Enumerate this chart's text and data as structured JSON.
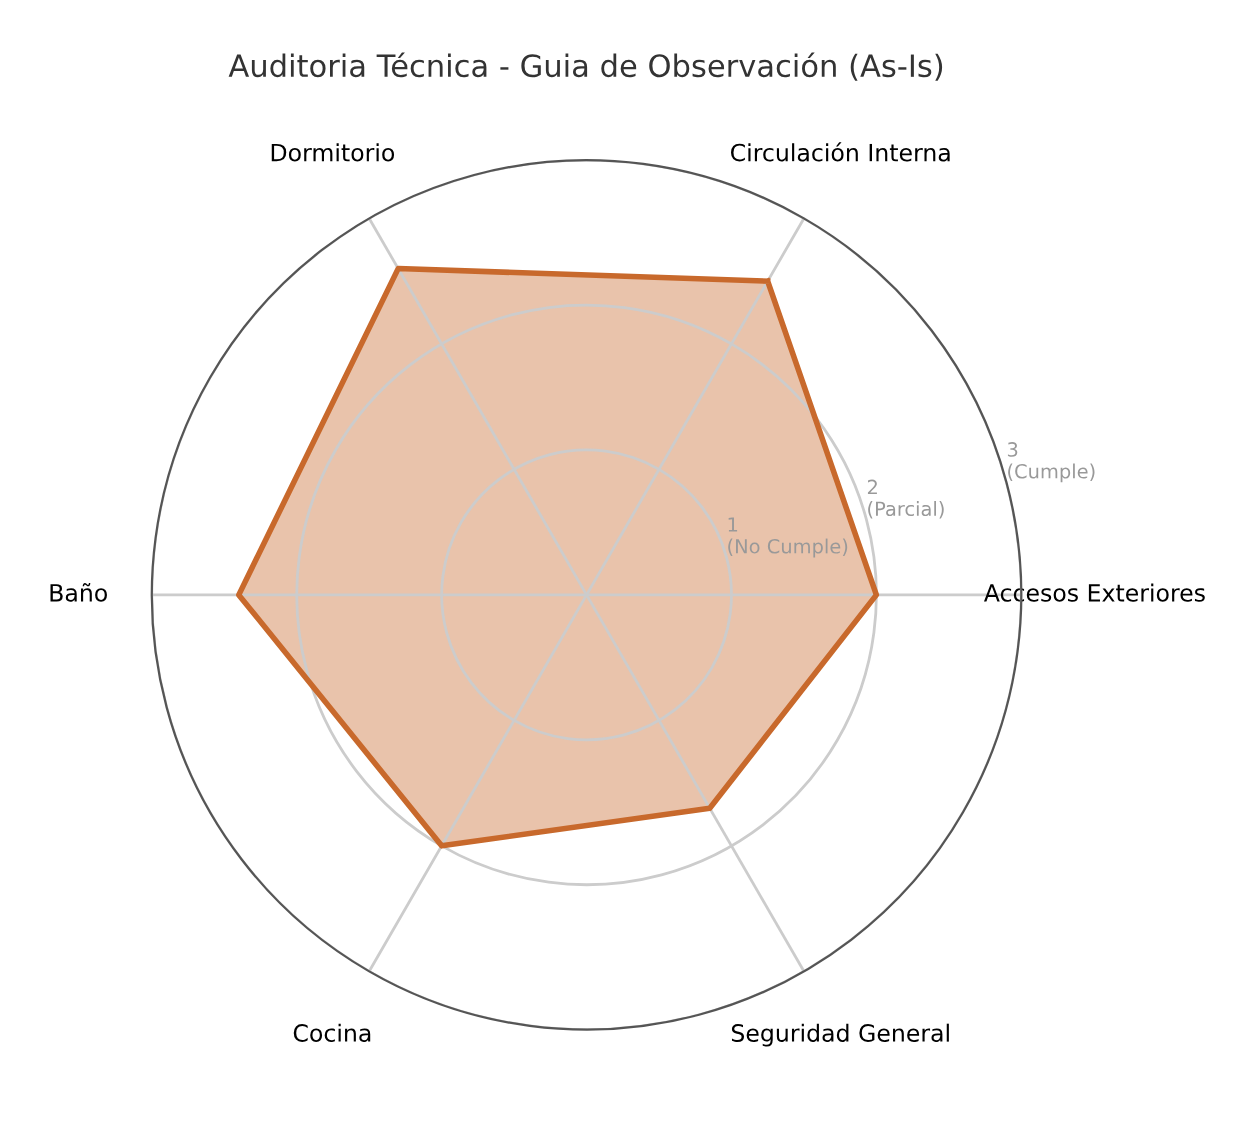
{
  "chart_data": {
    "type": "radar",
    "title": "Auditoria Técnica - Guia de Observación (As-Is)",
    "categories": [
      "Circulación Interna",
      "Accesos Exteriores",
      "Seguridad General",
      "Cocina",
      "Baño",
      "Dormitorio"
    ],
    "series": [
      {
        "color": "#c8692c",
        "values": [
          2.5,
          2.0,
          1.7,
          2.0,
          2.4,
          2.6
        ]
      }
    ],
    "ylim": [
      0,
      3
    ],
    "yticks": [
      {
        "value": 1,
        "label": "1\n(No Cumple)"
      },
      {
        "value": 2,
        "label": "2\n(Parcial)"
      },
      {
        "value": 3,
        "label": "3\n(Cumple)"
      }
    ],
    "grid": true
  }
}
